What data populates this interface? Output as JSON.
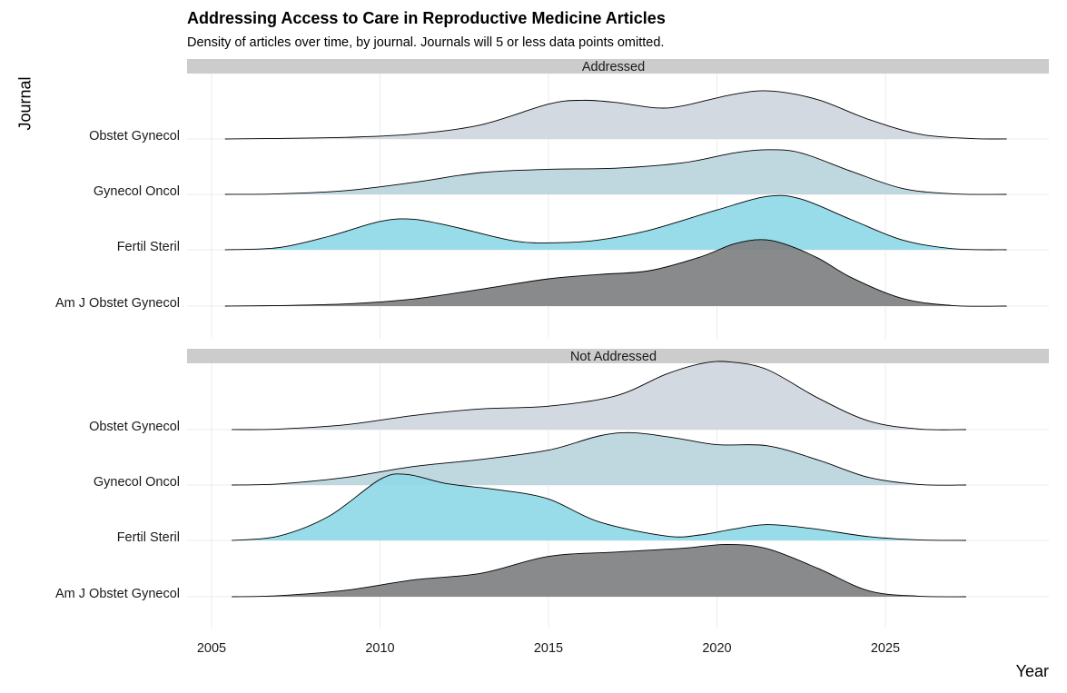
{
  "title": "Addressing Access to Care in Reproductive Medicine Articles",
  "subtitle": "Density of articles over time, by journal. Journals will 5 or less data points omitted.",
  "colors": {
    "Obstet Gynecol": "#cfd6de",
    "Gynecol Oncol": "#bad4dc",
    "Fertil Steril": "#8fd9e8",
    "Am J Obstet Gynecol": "#7e8082",
    "strip": "#cccccc",
    "grid": "#ebebeb"
  },
  "chart_data": {
    "type": "ridgeline",
    "xlabel": "Year",
    "ylabel": "Journal",
    "xlim": [
      2004.3,
      2029.7
    ],
    "x_ticks": [
      2005,
      2010,
      2015,
      2020,
      2025
    ],
    "journals": [
      "Obstet Gynecol",
      "Gynecol Oncol",
      "Fertil Steril",
      "Am J Obstet Gynecol"
    ],
    "panels": [
      {
        "strip": "Addressed",
        "series": [
          {
            "name": "Obstet Gynecol",
            "x_range": [
              2005.4,
              2028.6
            ],
            "points": [
              [
                2005.4,
                0
              ],
              [
                2007,
                0.01
              ],
              [
                2009,
                0.03
              ],
              [
                2011,
                0.09
              ],
              [
                2013,
                0.26
              ],
              [
                2015,
                0.64
              ],
              [
                2016,
                0.71
              ],
              [
                2017,
                0.67
              ],
              [
                2018.2,
                0.57
              ],
              [
                2019,
                0.61
              ],
              [
                2020.5,
                0.82
              ],
              [
                2021.6,
                0.88
              ],
              [
                2023,
                0.72
              ],
              [
                2024.5,
                0.36
              ],
              [
                2026,
                0.09
              ],
              [
                2027.5,
                0.01
              ],
              [
                2028.6,
                0
              ]
            ]
          },
          {
            "name": "Gynecol Oncol",
            "x_range": [
              2005.4,
              2028.6
            ],
            "points": [
              [
                2005.4,
                0
              ],
              [
                2007,
                0.01
              ],
              [
                2009,
                0.07
              ],
              [
                2011,
                0.22
              ],
              [
                2013,
                0.4
              ],
              [
                2015,
                0.46
              ],
              [
                2017,
                0.48
              ],
              [
                2019,
                0.58
              ],
              [
                2020.5,
                0.76
              ],
              [
                2021.5,
                0.82
              ],
              [
                2022.5,
                0.76
              ],
              [
                2024,
                0.42
              ],
              [
                2025.5,
                0.11
              ],
              [
                2027,
                0.01
              ],
              [
                2028.6,
                0
              ]
            ]
          },
          {
            "name": "Fertil Steril",
            "x_range": [
              2005.4,
              2028.6
            ],
            "points": [
              [
                2005.4,
                0
              ],
              [
                2007,
                0.04
              ],
              [
                2008.5,
                0.25
              ],
              [
                2010,
                0.52
              ],
              [
                2011,
                0.56
              ],
              [
                2012.2,
                0.42
              ],
              [
                2014,
                0.16
              ],
              [
                2015.3,
                0.13
              ],
              [
                2016.5,
                0.18
              ],
              [
                2018,
                0.36
              ],
              [
                2020,
                0.73
              ],
              [
                2021.5,
                0.98
              ],
              [
                2022.5,
                0.93
              ],
              [
                2024,
                0.55
              ],
              [
                2025.5,
                0.18
              ],
              [
                2027,
                0.02
              ],
              [
                2028.6,
                0
              ]
            ]
          },
          {
            "name": "Am J Obstet Gynecol",
            "x_range": [
              2005.4,
              2028.6
            ],
            "points": [
              [
                2005.4,
                0
              ],
              [
                2007,
                0.01
              ],
              [
                2009,
                0.04
              ],
              [
                2011,
                0.13
              ],
              [
                2013,
                0.31
              ],
              [
                2015,
                0.5
              ],
              [
                2016.5,
                0.58
              ],
              [
                2018,
                0.65
              ],
              [
                2019.5,
                0.9
              ],
              [
                2020.5,
                1.14
              ],
              [
                2021.3,
                1.22
              ],
              [
                2022,
                1.14
              ],
              [
                2023,
                0.88
              ],
              [
                2024,
                0.52
              ],
              [
                2025.5,
                0.14
              ],
              [
                2027,
                0.01
              ],
              [
                2028.6,
                0
              ]
            ]
          }
        ]
      },
      {
        "strip": "Not Addressed",
        "series": [
          {
            "name": "Obstet Gynecol",
            "x_range": [
              2005.6,
              2027.4
            ],
            "points": [
              [
                2005.6,
                0
              ],
              [
                2007,
                0.01
              ],
              [
                2009,
                0.09
              ],
              [
                2011,
                0.26
              ],
              [
                2013,
                0.38
              ],
              [
                2015,
                0.43
              ],
              [
                2017,
                0.62
              ],
              [
                2018.5,
                1.02
              ],
              [
                2019.6,
                1.22
              ],
              [
                2020.4,
                1.24
              ],
              [
                2021.5,
                1.1
              ],
              [
                2023,
                0.58
              ],
              [
                2024.5,
                0.16
              ],
              [
                2026,
                0.01
              ],
              [
                2027.4,
                0
              ]
            ]
          },
          {
            "name": "Gynecol Oncol",
            "x_range": [
              2005.6,
              2027.4
            ],
            "points": [
              [
                2005.6,
                0
              ],
              [
                2007,
                0.02
              ],
              [
                2009,
                0.14
              ],
              [
                2011,
                0.34
              ],
              [
                2013,
                0.47
              ],
              [
                2015,
                0.64
              ],
              [
                2016.5,
                0.9
              ],
              [
                2017.5,
                0.96
              ],
              [
                2018.8,
                0.86
              ],
              [
                2020,
                0.74
              ],
              [
                2021.5,
                0.72
              ],
              [
                2023,
                0.46
              ],
              [
                2024.5,
                0.14
              ],
              [
                2026,
                0.01
              ],
              [
                2027.4,
                0
              ]
            ]
          },
          {
            "name": "Fertil Steril",
            "x_range": [
              2005.6,
              2027.4
            ],
            "points": [
              [
                2005.6,
                0
              ],
              [
                2007,
                0.08
              ],
              [
                2008.5,
                0.45
              ],
              [
                2010,
                1.12
              ],
              [
                2010.8,
                1.21
              ],
              [
                2012,
                1.04
              ],
              [
                2013.5,
                0.93
              ],
              [
                2015,
                0.76
              ],
              [
                2016.5,
                0.34
              ],
              [
                2018.5,
                0.08
              ],
              [
                2019.5,
                0.1
              ],
              [
                2020.5,
                0.21
              ],
              [
                2021.5,
                0.29
              ],
              [
                2022.8,
                0.22
              ],
              [
                2024.5,
                0.07
              ],
              [
                2026,
                0.01
              ],
              [
                2027.4,
                0
              ]
            ]
          },
          {
            "name": "Am J Obstet Gynecol",
            "x_range": [
              2005.6,
              2027.4
            ],
            "points": [
              [
                2005.6,
                0
              ],
              [
                2007,
                0.02
              ],
              [
                2009,
                0.12
              ],
              [
                2011,
                0.31
              ],
              [
                2013,
                0.43
              ],
              [
                2015,
                0.74
              ],
              [
                2017,
                0.82
              ],
              [
                2019,
                0.89
              ],
              [
                2020.3,
                0.96
              ],
              [
                2021.5,
                0.88
              ],
              [
                2023,
                0.52
              ],
              [
                2024.5,
                0.11
              ],
              [
                2026,
                0.01
              ],
              [
                2027.4,
                0
              ]
            ]
          }
        ]
      }
    ]
  }
}
